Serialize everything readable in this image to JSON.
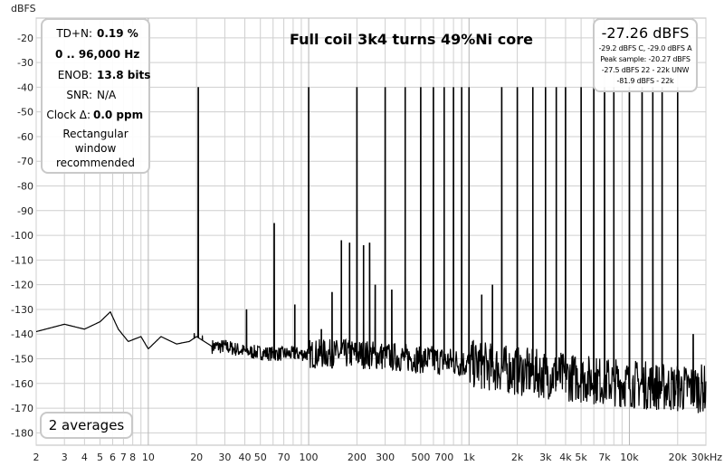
{
  "chart_data": {
    "type": "line",
    "title": "Full coil 3k4 turns 49%Ni core",
    "ylabel": "dBFS",
    "xunit": "Hz",
    "x_scale": "log",
    "xlim": [
      2,
      30000
    ],
    "ylim": [
      -185,
      -12
    ],
    "grid": true,
    "yticks": [
      -20,
      -30,
      -40,
      -50,
      -60,
      -70,
      -80,
      -90,
      -100,
      -110,
      -120,
      -130,
      -140,
      -150,
      -160,
      -170,
      -180
    ],
    "xticks": [
      {
        "value": 2,
        "label": "2"
      },
      {
        "value": 3,
        "label": "3"
      },
      {
        "value": 4,
        "label": "4"
      },
      {
        "value": 5,
        "label": "5"
      },
      {
        "value": 6,
        "label": "6"
      },
      {
        "value": 7,
        "label": "7"
      },
      {
        "value": 8,
        "label": "8"
      },
      {
        "value": 10,
        "label": "10"
      },
      {
        "value": 20,
        "label": "20"
      },
      {
        "value": 30,
        "label": "30"
      },
      {
        "value": 40,
        "label": "40"
      },
      {
        "value": 50,
        "label": "50"
      },
      {
        "value": 70,
        "label": "70"
      },
      {
        "value": 100,
        "label": "100"
      },
      {
        "value": 200,
        "label": "200"
      },
      {
        "value": 300,
        "label": "300"
      },
      {
        "value": 500,
        "label": "500"
      },
      {
        "value": 700,
        "label": "700"
      },
      {
        "value": 1000,
        "label": "1k"
      },
      {
        "value": 2000,
        "label": "2k"
      },
      {
        "value": 3000,
        "label": "3k"
      },
      {
        "value": 4000,
        "label": "4k"
      },
      {
        "value": 5000,
        "label": "5k"
      },
      {
        "value": 7000,
        "label": "7k"
      },
      {
        "value": 10000,
        "label": "10k"
      },
      {
        "value": 20000,
        "label": "20k"
      },
      {
        "value": 30000,
        "label": "30kHz"
      }
    ],
    "series": [
      {
        "noise_floor": [
          [
            2,
            -139
          ],
          [
            3,
            -136
          ],
          [
            4,
            -138
          ],
          [
            5,
            -135
          ],
          [
            5.8,
            -131
          ],
          [
            6.5,
            -138
          ],
          [
            7.5,
            -143
          ],
          [
            9,
            -141
          ],
          [
            10,
            -146
          ],
          [
            12,
            -141
          ],
          [
            15,
            -144
          ],
          [
            18,
            -143
          ],
          [
            20,
            -141
          ],
          [
            25,
            -145
          ],
          [
            30,
            -145
          ],
          [
            40,
            -147
          ],
          [
            60,
            -148
          ],
          [
            100,
            -148
          ],
          [
            200,
            -148
          ],
          [
            500,
            -150
          ],
          [
            1000,
            -152
          ],
          [
            2000,
            -155
          ],
          [
            5000,
            -158
          ],
          [
            10000,
            -160
          ],
          [
            20000,
            -162
          ],
          [
            30000,
            -162
          ]
        ],
        "peaks": [
          [
            20.5,
            -40
          ],
          [
            41,
            -130
          ],
          [
            61,
            -95
          ],
          [
            82,
            -128
          ],
          [
            100,
            -40
          ],
          [
            120,
            -138
          ],
          [
            140,
            -123
          ],
          [
            160,
            -102
          ],
          [
            180,
            -103
          ],
          [
            200,
            -40
          ],
          [
            220,
            -104
          ],
          [
            240,
            -103
          ],
          [
            260,
            -120
          ],
          [
            300,
            -40
          ],
          [
            330,
            -122
          ],
          [
            400,
            -40
          ],
          [
            500,
            -40
          ],
          [
            600,
            -40
          ],
          [
            700,
            -40
          ],
          [
            800,
            -40
          ],
          [
            900,
            -40
          ],
          [
            1000,
            -40
          ],
          [
            1200,
            -124
          ],
          [
            1400,
            -120
          ],
          [
            1600,
            -40
          ],
          [
            2000,
            -40
          ],
          [
            2500,
            -40
          ],
          [
            3000,
            -40
          ],
          [
            3500,
            -40
          ],
          [
            4000,
            -40
          ],
          [
            5000,
            -40
          ],
          [
            6000,
            -40
          ],
          [
            7000,
            -40
          ],
          [
            8000,
            -40
          ],
          [
            10000,
            -40
          ],
          [
            12000,
            -40
          ],
          [
            14000,
            -40
          ],
          [
            16000,
            -40
          ],
          [
            20000,
            -40
          ],
          [
            25000,
            -140
          ]
        ]
      }
    ]
  },
  "stats_panel": {
    "thd_label": "TD+N:",
    "thd_value": "0.19 %",
    "range_value": "0 .. 96,000 Hz",
    "enob_label": "ENOB:",
    "enob_value": "13.8 bits",
    "snr_label": "SNR:",
    "snr_value": "N/A",
    "clock_label": "Clock Δ:",
    "clock_value": "0.0 ppm",
    "window_line1": "Rectangular",
    "window_line2": "window",
    "window_line3": "recommended"
  },
  "level_panel": {
    "main": "-27.26 dBFS",
    "line1": "-29.2 dBFS C, -29.0 dBFS A",
    "line2": "Peak sample: -20.27 dBFS",
    "line3": "-27.5 dBFS 22 - 22k UNW",
    "line4": "-81.9 dBFS - 22k"
  },
  "averages": "2 averages",
  "colors": {
    "trace": "#000000",
    "grid": "#cfcfcf",
    "panel_border": "#c9c9c9"
  }
}
